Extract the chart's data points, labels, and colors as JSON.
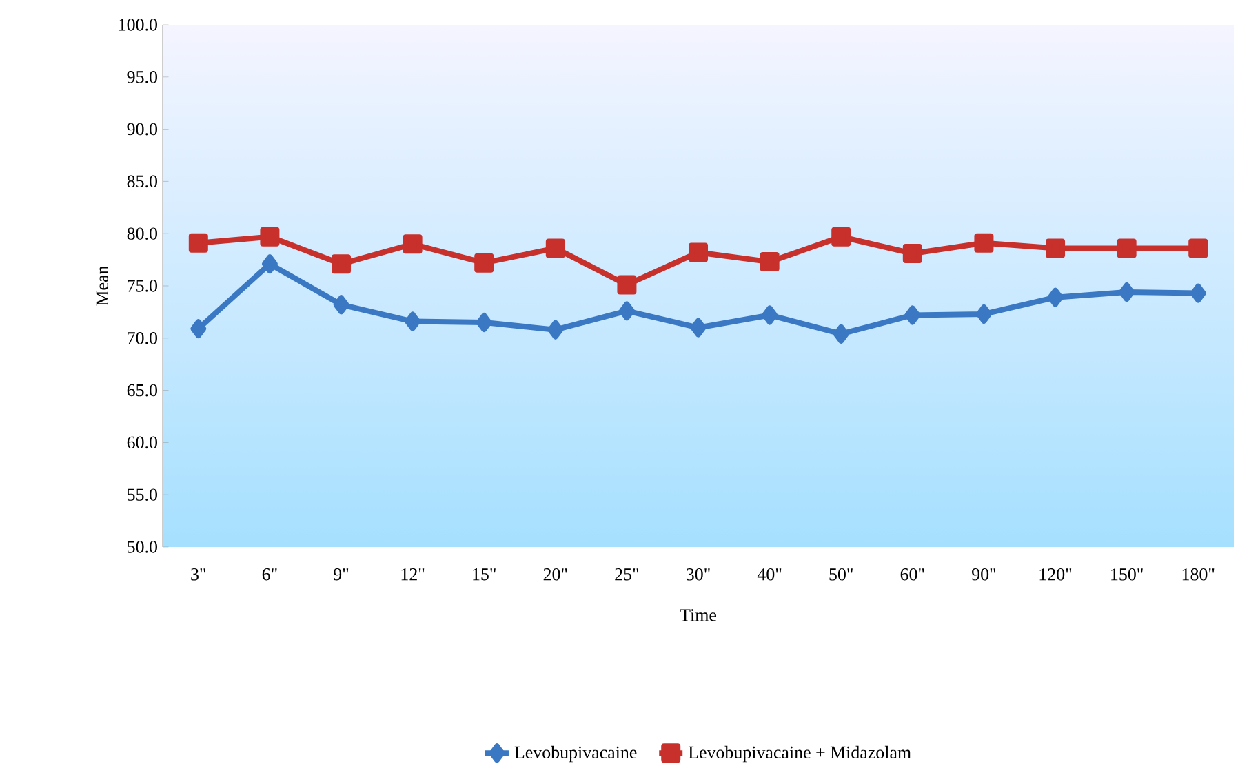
{
  "chart_data": {
    "type": "line",
    "xlabel": "Time",
    "ylabel": "Mean",
    "categories": [
      "3\"",
      "6\"",
      "9\"",
      "12\"",
      "15\"",
      "20\"",
      "25\"",
      "30\"",
      "40\"",
      "50\"",
      "60\"",
      "90\"",
      "120\"",
      "150\"",
      "180\""
    ],
    "series": [
      {
        "name": "Levobupivacaine",
        "color": "#3a78c4",
        "marker": "diamond",
        "values": [
          70.9,
          77.1,
          73.2,
          71.6,
          71.5,
          70.8,
          72.6,
          71.0,
          72.2,
          70.4,
          72.2,
          72.3,
          73.9,
          74.4,
          74.3
        ]
      },
      {
        "name": "Levobupivacaine + Midazolam",
        "color": "#c8302c",
        "marker": "square",
        "values": [
          79.1,
          79.7,
          77.1,
          79.0,
          77.2,
          78.6,
          75.1,
          78.2,
          77.3,
          79.7,
          78.1,
          79.1,
          78.6,
          78.6,
          78.6
        ]
      }
    ],
    "ylim": [
      50,
      100
    ],
    "yticks": [
      {
        "value": 50,
        "label": "50.0"
      },
      {
        "value": 55,
        "label": "55.0"
      },
      {
        "value": 60,
        "label": "60.0"
      },
      {
        "value": 65,
        "label": "65.0"
      },
      {
        "value": 70,
        "label": "70.0"
      },
      {
        "value": 75,
        "label": "75.0"
      },
      {
        "value": 80,
        "label": "80.0"
      },
      {
        "value": 85,
        "label": "85.0"
      },
      {
        "value": 90,
        "label": "90.0"
      },
      {
        "value": 95,
        "label": "95.0"
      },
      {
        "value": 100,
        "label": "100.0"
      }
    ],
    "grid": false,
    "legend": "bottom",
    "line_style": "solid"
  }
}
